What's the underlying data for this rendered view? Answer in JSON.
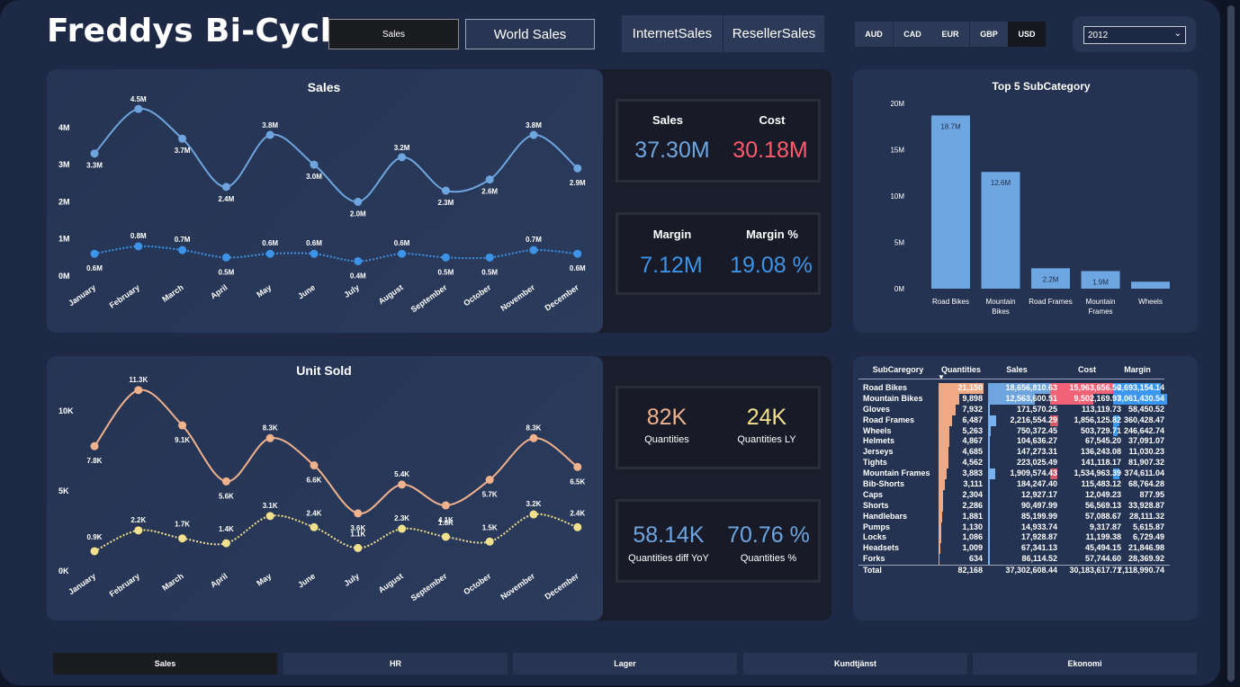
{
  "header": {
    "title": "Freddys Bi-Cycle"
  },
  "nav_buttons": {
    "sales": "Sales",
    "world_sales": "World Sales",
    "internet_sales": "InternetSales",
    "reseller_sales": "ResellerSales"
  },
  "currencies": [
    "AUD",
    "CAD",
    "EUR",
    "GBP",
    "USD"
  ],
  "selected_currency": "USD",
  "year_filter": {
    "value": "2012"
  },
  "sales_chart": {
    "title": "Sales",
    "months": [
      "January",
      "February",
      "March",
      "April",
      "May",
      "June",
      "July",
      "August",
      "September",
      "October",
      "November",
      "December"
    ],
    "y_ticks": [
      "4M",
      "3M",
      "2M",
      "1M",
      "0M"
    ],
    "sales": [
      3.3,
      4.5,
      3.7,
      2.4,
      3.8,
      3.0,
      2.0,
      3.2,
      2.3,
      2.6,
      3.8,
      2.9
    ],
    "sales_labels": [
      "3.3M",
      "4.5M",
      "3.7M",
      "2.4M",
      "3.8M",
      "3.0M",
      "2.0M",
      "3.2M",
      "2.3M",
      "2.6M",
      "3.8M",
      "2.9M"
    ],
    "margin": [
      0.6,
      0.8,
      0.7,
      0.5,
      0.6,
      0.6,
      0.4,
      0.6,
      0.5,
      0.5,
      0.7,
      0.6
    ],
    "margin_labels": [
      "0.6M",
      "0.8M",
      "0.7M",
      "0.5M",
      "0.6M",
      "0.6M",
      "0.4M",
      "0.6M",
      "0.5M",
      "0.5M",
      "0.7M",
      "0.6M"
    ]
  },
  "units_chart": {
    "title": "Unit Sold",
    "y_ticks": [
      "10K",
      "5K",
      "0K"
    ],
    "units": [
      7.8,
      11.3,
      9.1,
      5.6,
      8.3,
      6.6,
      3.6,
      5.4,
      4.1,
      5.7,
      8.3,
      6.5
    ],
    "units_labels": [
      "7.8K",
      "11.3K",
      "9.1K",
      "5.6K",
      "8.3K",
      "6.6K",
      "3.6K",
      "5.4K",
      "4.1K",
      "5.7K",
      "8.3K",
      "6.5K"
    ],
    "units_ly": [
      0.9,
      2.2,
      1.7,
      1.4,
      3.1,
      2.4,
      1.1,
      2.3,
      1.8,
      1.5,
      3.2,
      2.4
    ],
    "units_ly_labels": [
      "0.9K",
      "2.2K",
      "1.7K",
      "1.4K",
      "3.1K",
      "2.4K",
      "1.1K",
      "2.3K",
      "1.8K",
      "1.5K",
      "3.2K",
      "2.4K"
    ]
  },
  "kpis": {
    "sales_label": "Sales",
    "sales_value": "37.30M",
    "cost_label": "Cost",
    "cost_value": "30.18M",
    "margin_label": "Margin",
    "margin_value": "7.12M",
    "margin_pct_label": "Margin %",
    "margin_pct_value": "19.08 %",
    "qty_value": "82K",
    "qty_label": "Quantities",
    "qty_ly_value": "24K",
    "qty_ly_label": "Quantities LY",
    "qty_diff_value": "58.14K",
    "qty_diff_label": "Quantities diff YoY",
    "qty_pct_value": "70.76 %",
    "qty_pct_label": "Quantities %"
  },
  "top5": {
    "title": "Top 5 SubCategory",
    "y_ticks": [
      "20M",
      "15M",
      "10M",
      "5M",
      "0M"
    ],
    "categories": [
      "Road Bikes",
      "Mountain Bikes",
      "Road Frames",
      "Mountain Frames",
      "Wheels"
    ],
    "category_lines": [
      [
        "Road Bikes"
      ],
      [
        "Mountain",
        "Bikes"
      ],
      [
        "Road Frames"
      ],
      [
        "Mountain",
        "Frames"
      ],
      [
        "Wheels"
      ]
    ],
    "values": [
      18.7,
      12.6,
      2.2,
      1.9,
      0.75
    ],
    "labels": [
      "18.7M",
      "12.6M",
      "2.2M",
      "1.9M",
      ""
    ]
  },
  "table": {
    "headers": [
      "SubCaregory",
      "Quantities",
      "Sales",
      "Cost",
      "Margin"
    ],
    "rows": [
      [
        "Road Bikes",
        "21,150",
        "18,656,810.63",
        "15,963,656.50",
        "2,693,154.14"
      ],
      [
        "Mountain Bikes",
        "9,898",
        "12,563,600.51",
        "9,502,169.97",
        "3,061,430.54"
      ],
      [
        "Gloves",
        "7,932",
        "171,570.25",
        "113,119.73",
        "58,450.52"
      ],
      [
        "Road Frames",
        "6,487",
        "2,216,554.29",
        "1,856,125.82",
        "360,428.47"
      ],
      [
        "Wheels",
        "5,263",
        "750,372.45",
        "503,729.71",
        "246,642.74"
      ],
      [
        "Helmets",
        "4,867",
        "104,636.27",
        "67,545.20",
        "37,091.07"
      ],
      [
        "Jerseys",
        "4,685",
        "147,273.31",
        "136,243.08",
        "11,030.23"
      ],
      [
        "Tights",
        "4,562",
        "223,025.49",
        "141,118.17",
        "81,907.32"
      ],
      [
        "Mountain Frames",
        "3,883",
        "1,909,574.43",
        "1,534,963.39",
        "374,611.04"
      ],
      [
        "Bib-Shorts",
        "3,111",
        "184,247.40",
        "115,483.12",
        "68,764.28"
      ],
      [
        "Caps",
        "2,304",
        "12,927.17",
        "12,049.23",
        "877.95"
      ],
      [
        "Shorts",
        "2,286",
        "90,497.99",
        "56,569.13",
        "33,928.87"
      ],
      [
        "Handlebars",
        "1,881",
        "85,199.99",
        "57,088.67",
        "28,111.32"
      ],
      [
        "Pumps",
        "1,130",
        "14,933.74",
        "9,317.87",
        "5,615.87"
      ],
      [
        "Locks",
        "1,086",
        "17,928.87",
        "11,199.38",
        "6,729.49"
      ],
      [
        "Headsets",
        "1,009",
        "67,341.13",
        "45,494.15",
        "21,846.98"
      ],
      [
        "Forks",
        "634",
        "86,114.52",
        "57,744.60",
        "28,369.92"
      ]
    ],
    "total": [
      "Total",
      "82,168",
      "37,302,608.44",
      "30,183,617.71",
      "7,118,990.74"
    ]
  },
  "tabs": [
    "Sales",
    "HR",
    "Lager",
    "Kundtjänst",
    "Ekonomi"
  ],
  "colors": {
    "sales_line": "#6ea5df",
    "margin_line": "#3d93e6",
    "units_line": "#f0b18d",
    "units_ly_line": "#f1e08e",
    "cost": "#ff5a6e",
    "bar": "#6da6e0",
    "table_bar": "#f0a985",
    "table_sales_bar": "#79b2f0",
    "table_margin_bar": "#3c97f2"
  }
}
